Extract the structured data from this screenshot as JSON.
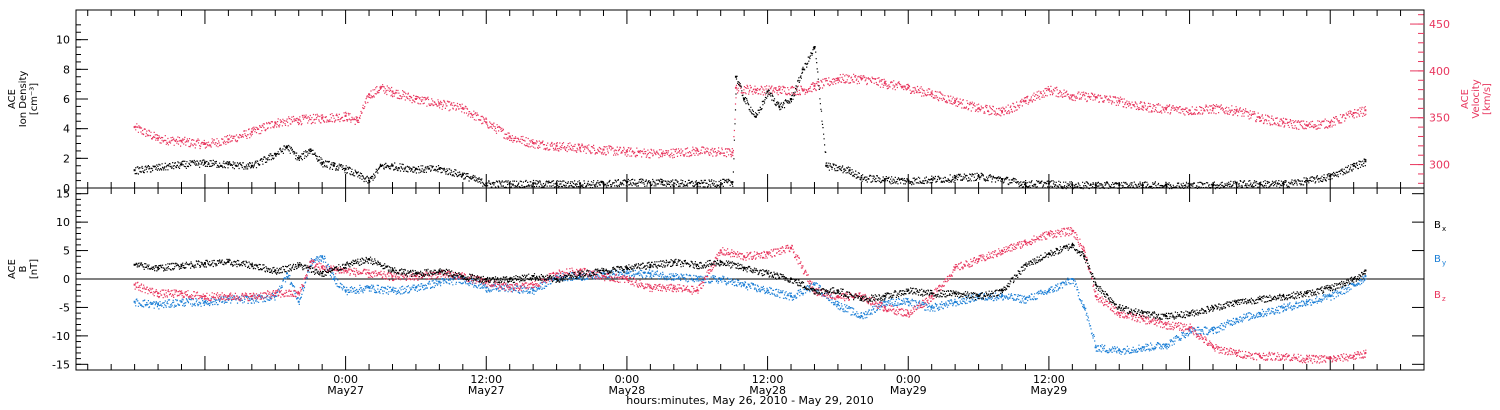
{
  "chart_data": [
    {
      "type": "scatter",
      "panel": "top",
      "ylabel_left_lines": [
        "ACE",
        "Ion Density",
        "[cm⁻³]"
      ],
      "ylabel_right_lines": [
        "ACE",
        "Velocity",
        "[km/s]"
      ],
      "ylim_left": [
        0,
        12
      ],
      "ylim_right": [
        275,
        465
      ],
      "yticks_left": [
        0,
        2,
        4,
        6,
        8,
        10
      ],
      "yticks_right": [
        300,
        350,
        400,
        450
      ],
      "series": [
        {
          "color": "#000000",
          "axis": "left",
          "x_hours": [
            -18,
            -14,
            -12,
            -10,
            -8,
            -6,
            -5,
            -4,
            -3,
            -2,
            -1,
            0,
            2,
            3,
            4,
            6,
            8,
            10,
            12,
            14,
            16,
            18,
            20,
            22,
            24,
            27,
            30,
            33,
            33.3,
            34,
            35,
            36,
            37,
            38,
            39,
            40,
            41,
            43,
            44,
            46,
            48,
            50,
            52,
            54,
            56,
            58,
            60,
            62,
            64,
            66,
            68,
            70,
            72,
            74,
            76,
            78,
            80,
            82,
            84,
            86,
            87
          ],
          "values": [
            1.2,
            1.6,
            1.7,
            1.6,
            1.5,
            2.3,
            2.8,
            2.0,
            2.6,
            1.7,
            1.5,
            1.3,
            0.5,
            1.5,
            1.5,
            1.3,
            1.3,
            0.9,
            0.3,
            0.3,
            0.3,
            0.3,
            0.3,
            0.3,
            0.4,
            0.4,
            0.3,
            0.4,
            7.5,
            6.0,
            4.8,
            6.5,
            5.5,
            6.0,
            8.0,
            9.5,
            1.5,
            1.2,
            0.7,
            0.6,
            0.5,
            0.6,
            0.7,
            0.8,
            0.6,
            0.3,
            0.3,
            0.2,
            0.2,
            0.2,
            0.2,
            0.2,
            0.2,
            0.2,
            0.3,
            0.3,
            0.3,
            0.5,
            0.8,
            1.5,
            1.8
          ]
        },
        {
          "color": "#e8365e",
          "axis": "right",
          "x_hours": [
            -18,
            -16,
            -14,
            -12,
            -10,
            -8,
            -6,
            -4,
            -2,
            0,
            1,
            2,
            3,
            4,
            6,
            8,
            10,
            12,
            14,
            16,
            18,
            20,
            22,
            24,
            27,
            30,
            33,
            33.3,
            35,
            37,
            39,
            40,
            42,
            44,
            46,
            48,
            50,
            52,
            54,
            56,
            58,
            60,
            62,
            64,
            66,
            68,
            70,
            72,
            74,
            76,
            78,
            80,
            82,
            84,
            86,
            87
          ],
          "values": [
            340,
            328,
            325,
            322,
            327,
            335,
            345,
            348,
            350,
            352,
            347,
            375,
            382,
            378,
            370,
            365,
            360,
            345,
            330,
            323,
            320,
            318,
            316,
            314,
            312,
            315,
            313,
            382,
            380,
            380,
            380,
            384,
            392,
            392,
            387,
            382,
            376,
            368,
            360,
            357,
            368,
            380,
            374,
            372,
            368,
            362,
            360,
            358,
            360,
            358,
            350,
            345,
            342,
            345,
            355,
            358
          ]
        }
      ]
    },
    {
      "type": "scatter",
      "panel": "bottom",
      "ylabel_lines": [
        "ACE",
        "B",
        "[nT]"
      ],
      "ylim": [
        -16,
        16
      ],
      "yticks": [
        -15,
        -10,
        -5,
        0,
        5,
        10,
        15
      ],
      "series": [
        {
          "name": "B",
          "subscript": "x",
          "color": "#000000",
          "x_hours": [
            -18,
            -16,
            -14,
            -12,
            -10,
            -8,
            -6,
            -4,
            -2,
            0,
            2,
            4,
            6,
            8,
            10,
            12,
            14,
            16,
            18,
            20,
            22,
            24,
            26,
            28,
            30,
            32,
            34,
            36,
            38,
            40,
            42,
            44,
            46,
            48,
            50,
            52,
            54,
            56,
            58,
            60,
            62,
            63,
            64,
            66,
            68,
            70,
            72,
            74,
            76,
            78,
            80,
            82,
            84,
            86,
            87
          ],
          "values": [
            2.5,
            2,
            2.5,
            2.8,
            3,
            2.5,
            1.5,
            2.5,
            1,
            2.5,
            3.5,
            1.5,
            1,
            1.5,
            0.5,
            0,
            0,
            0.5,
            0,
            1,
            1.5,
            2,
            2.5,
            3,
            2.5,
            3,
            2,
            1,
            0,
            -2,
            -2,
            -3.5,
            -3,
            -2,
            -2.5,
            -2.5,
            -3,
            -2,
            2.5,
            4.5,
            6,
            4,
            -1,
            -5,
            -6,
            -6.5,
            -6,
            -5,
            -4,
            -3.5,
            -3,
            -2.5,
            -1.5,
            0,
            1.5
          ]
        },
        {
          "name": "B",
          "subscript": "y",
          "color": "#1a7ed6",
          "x_hours": [
            -18,
            -16,
            -14,
            -12,
            -10,
            -8,
            -6,
            -5,
            -4,
            -3,
            -2,
            -1,
            0,
            2,
            4,
            6,
            8,
            10,
            12,
            14,
            16,
            18,
            20,
            22,
            24,
            26,
            28,
            30,
            32,
            34,
            36,
            38,
            40,
            42,
            44,
            46,
            48,
            50,
            52,
            54,
            56,
            58,
            60,
            62,
            63,
            64,
            66,
            68,
            70,
            72,
            74,
            76,
            78,
            80,
            82,
            84,
            86,
            87
          ],
          "values": [
            -4,
            -4.5,
            -4,
            -4,
            -3.5,
            -3.5,
            -3,
            1,
            -4,
            3,
            4,
            0,
            -2,
            -1.5,
            -2,
            -1.5,
            -0.5,
            0,
            -1.5,
            -1.5,
            -2,
            0.5,
            0.5,
            1,
            1,
            1,
            0.5,
            0,
            0,
            -1,
            -2,
            -3,
            -1,
            -4.5,
            -6.5,
            -4,
            -4,
            -5,
            -4,
            -3,
            -3,
            -3.5,
            -2,
            0,
            -5,
            -12,
            -12.5,
            -12,
            -11.5,
            -9,
            -9,
            -7,
            -6,
            -5,
            -4,
            -3,
            -1,
            0.5
          ]
        },
        {
          "name": "B",
          "subscript": "z",
          "color": "#e8365e",
          "x_hours": [
            -18,
            -16,
            -14,
            -12,
            -10,
            -8,
            -6,
            -4,
            -3,
            -2,
            0,
            2,
            4,
            6,
            8,
            10,
            12,
            14,
            16,
            18,
            20,
            22,
            24,
            26,
            28,
            30,
            32,
            34,
            36,
            38,
            40,
            42,
            44,
            46,
            48,
            50,
            52,
            54,
            56,
            58,
            60,
            62,
            63,
            64,
            66,
            68,
            70,
            72,
            74,
            76,
            78,
            80,
            82,
            84,
            86,
            87
          ],
          "values": [
            -1,
            -2.5,
            -2.5,
            -3,
            -3,
            -3,
            -2.5,
            -2.5,
            3,
            2,
            1.5,
            1,
            0.5,
            0.5,
            1,
            0.5,
            -0.5,
            -1.5,
            -1,
            1,
            1.5,
            0.5,
            0,
            -1.5,
            -1.5,
            -2,
            5,
            4,
            4.5,
            5.5,
            -2,
            -3,
            -3,
            -5,
            -6,
            -3,
            2,
            3.5,
            5,
            6.5,
            8,
            8.5,
            5,
            -3,
            -6,
            -7,
            -8,
            -8.5,
            -12,
            -13,
            -13.5,
            -13.5,
            -14,
            -14,
            -13.5,
            -13
          ]
        }
      ]
    }
  ],
  "x_axis": {
    "xlim_hours": [
      -23,
      92
    ],
    "ticks": [
      {
        "hours": 0,
        "line1": "0:00",
        "line2": "May27"
      },
      {
        "hours": 12,
        "line1": "12:00",
        "line2": "May27"
      },
      {
        "hours": 24,
        "line1": "0:00",
        "line2": "May28"
      },
      {
        "hours": 36,
        "line1": "12:00",
        "line2": "May28"
      },
      {
        "hours": 48,
        "line1": "0:00",
        "line2": "May29"
      },
      {
        "hours": 60,
        "line1": "12:00",
        "line2": "May29"
      }
    ],
    "xlabel": "hours:minutes, May 26, 2010 - May 29, 2010"
  },
  "colors": {
    "density": "#000000",
    "velocity": "#e8365e",
    "bx": "#000000",
    "by": "#1a7ed6",
    "bz": "#e8365e"
  }
}
